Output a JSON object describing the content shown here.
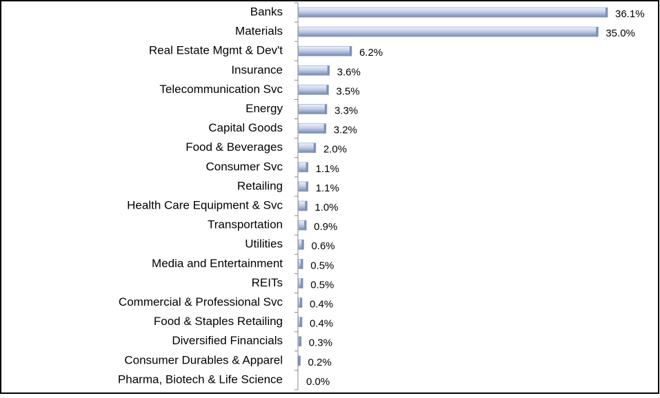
{
  "chart_data": {
    "type": "bar",
    "orientation": "horizontal",
    "categories": [
      "Banks",
      "Materials",
      "Real Estate Mgmt & Dev't",
      "Insurance",
      "Telecommunication Svc",
      "Energy",
      "Capital Goods",
      "Food & Beverages",
      "Consumer Svc",
      "Retailing",
      "Health Care Equipment & Svc",
      "Transportation",
      "Utilities",
      "Media and Entertainment",
      "REITs",
      "Commercial & Professional Svc",
      "Food & Staples Retailing",
      "Diversified Financials",
      "Consumer Durables & Apparel",
      "Pharma, Biotech & Life Science"
    ],
    "values": [
      36.1,
      35.0,
      6.2,
      3.6,
      3.5,
      3.3,
      3.2,
      2.0,
      1.1,
      1.1,
      1.0,
      0.9,
      0.6,
      0.5,
      0.5,
      0.4,
      0.4,
      0.3,
      0.2,
      0.0
    ],
    "value_labels": [
      "36.1%",
      "35.0%",
      "6.2%",
      "3.6%",
      "3.5%",
      "3.3%",
      "3.2%",
      "2.0%",
      "1.1%",
      "1.1%",
      "1.0%",
      "0.9%",
      "0.6%",
      "0.5%",
      "0.5%",
      "0.4%",
      "0.4%",
      "0.3%",
      "0.2%",
      "0.0%"
    ],
    "color": "#9fb0d0"
  }
}
